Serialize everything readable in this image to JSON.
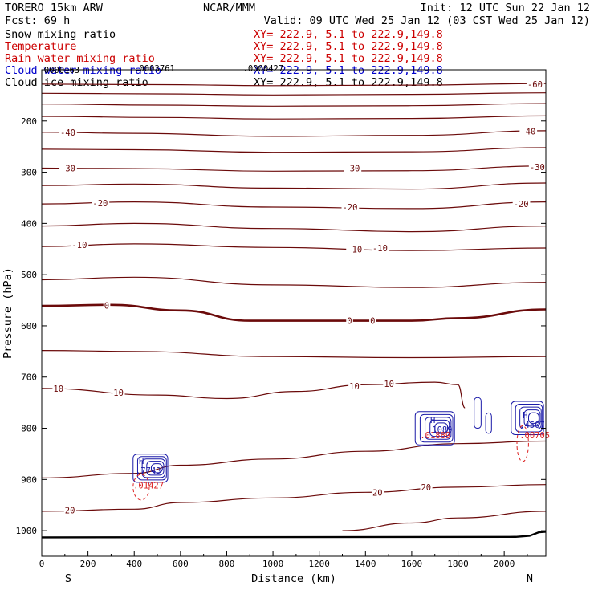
{
  "header": {
    "model": "TORERO  15km ARW",
    "center": "NCAR/MMM",
    "init": "Init: 12 UTC Sun 22 Jan 12",
    "fcst": "Fcst:   69 h",
    "valid": "Valid: 09 UTC Wed 25 Jan 12 (03 CST Wed 25 Jan 12)"
  },
  "legend": [
    {
      "label": "Snow mixing ratio",
      "xy": "XY= 222.9,  5.1 to 222.9,149.8",
      "color": "#000000",
      "xy_color": "#cc0000"
    },
    {
      "label": "Temperature",
      "xy": "XY= 222.9,  5.1 to 222.9,149.8",
      "color": "#cc0000",
      "xy_color": "#cc0000"
    },
    {
      "label": "Rain water mixing ratio",
      "xy": "XY= 222.9,  5.1 to 222.9,149.8",
      "color": "#cc0000",
      "xy_color": "#cc0000"
    },
    {
      "label": "Cloud water mixing ratio",
      "xy": "XY= 222.9,  5.1 to 222.9,149.8",
      "color": "#0000cc",
      "xy_color": "#0000cc"
    },
    {
      "label": "Cloud ice mixing ratio",
      "xy": "XY= 222.9,  5.1 to 222.9,149.8",
      "color": "#000000",
      "xy_color": "#000000"
    }
  ],
  "chart_data": {
    "type": "contour",
    "xlabel": "Distance (km)",
    "ylabel": "Pressure (hPa)",
    "xlim": [
      0,
      2180
    ],
    "ylim": [
      1050,
      100
    ],
    "x_ticks": [
      0,
      200,
      400,
      600,
      800,
      1000,
      1200,
      1400,
      1600,
      1800,
      2000
    ],
    "y_ticks": [
      200,
      300,
      400,
      500,
      600,
      700,
      800,
      900,
      1000
    ],
    "end_labels": {
      "left": "S",
      "right": "N"
    },
    "colors": {
      "temperature": "#6b0a0a",
      "cloud_water": "#1a1aa8",
      "rain": "#dd2222",
      "ground": "#000000"
    },
    "temperature_isotherms": [
      {
        "value": -60,
        "points": [
          [
            0,
            128
          ],
          [
            500,
            129
          ],
          [
            1000,
            131
          ],
          [
            1600,
            130
          ],
          [
            2180,
            127
          ]
        ]
      },
      {
        "value": -55,
        "points": [
          [
            0,
            146
          ],
          [
            500,
            147
          ],
          [
            1000,
            149
          ],
          [
            1600,
            148
          ],
          [
            2180,
            145
          ]
        ]
      },
      {
        "value": -50,
        "points": [
          [
            0,
            167
          ],
          [
            500,
            169
          ],
          [
            1000,
            171
          ],
          [
            1600,
            170
          ],
          [
            2180,
            166
          ]
        ]
      },
      {
        "value": -45,
        "points": [
          [
            0,
            191
          ],
          [
            500,
            193
          ],
          [
            1000,
            196
          ],
          [
            1600,
            195
          ],
          [
            2180,
            190
          ]
        ]
      },
      {
        "value": -40,
        "points": [
          [
            0,
            222
          ],
          [
            400,
            224
          ],
          [
            1000,
            230
          ],
          [
            1600,
            228
          ],
          [
            2180,
            219
          ]
        ]
      },
      {
        "value": -35,
        "points": [
          [
            0,
            255
          ],
          [
            400,
            256
          ],
          [
            1000,
            261
          ],
          [
            1600,
            260
          ],
          [
            2180,
            252
          ]
        ]
      },
      {
        "value": -30,
        "points": [
          [
            0,
            292
          ],
          [
            400,
            293
          ],
          [
            1000,
            298
          ],
          [
            1600,
            297
          ],
          [
            2180,
            288
          ]
        ]
      },
      {
        "value": -25,
        "points": [
          [
            0,
            326
          ],
          [
            400,
            323
          ],
          [
            1000,
            331
          ],
          [
            1600,
            333
          ],
          [
            2180,
            321
          ]
        ]
      },
      {
        "value": -20,
        "points": [
          [
            0,
            362
          ],
          [
            400,
            358
          ],
          [
            1000,
            368
          ],
          [
            1600,
            371
          ],
          [
            2180,
            358
          ]
        ]
      },
      {
        "value": -15,
        "points": [
          [
            0,
            405
          ],
          [
            400,
            400
          ],
          [
            1000,
            410
          ],
          [
            1600,
            416
          ],
          [
            2180,
            405
          ]
        ]
      },
      {
        "value": -10,
        "points": [
          [
            0,
            445
          ],
          [
            400,
            440
          ],
          [
            1000,
            447
          ],
          [
            1600,
            453
          ],
          [
            2180,
            448
          ]
        ]
      },
      {
        "value": -5,
        "points": [
          [
            0,
            510
          ],
          [
            400,
            505
          ],
          [
            1000,
            520
          ],
          [
            1600,
            525
          ],
          [
            2180,
            515
          ]
        ]
      },
      {
        "value": 0,
        "points": [
          [
            0,
            561
          ],
          [
            300,
            559
          ],
          [
            600,
            570
          ],
          [
            900,
            590
          ],
          [
            1200,
            590
          ],
          [
            1600,
            590
          ],
          [
            1800,
            585
          ],
          [
            2180,
            568
          ]
        ]
      },
      {
        "value": 5,
        "points": [
          [
            0,
            648
          ],
          [
            400,
            650
          ],
          [
            1000,
            660
          ],
          [
            1600,
            662
          ],
          [
            2180,
            660
          ]
        ]
      },
      {
        "value": 10,
        "points": [
          [
            0,
            722
          ],
          [
            500,
            735
          ],
          [
            800,
            742
          ],
          [
            1100,
            728
          ],
          [
            1400,
            715
          ],
          [
            1700,
            710
          ],
          [
            1800,
            715
          ],
          [
            1830,
            760
          ]
        ]
      },
      {
        "value": 15,
        "points": [
          [
            0,
            897
          ],
          [
            400,
            888
          ],
          [
            600,
            872
          ],
          [
            1000,
            860
          ],
          [
            1400,
            845
          ],
          [
            1800,
            830
          ],
          [
            2180,
            825
          ]
        ]
      },
      {
        "value": 20,
        "points": [
          [
            0,
            962
          ],
          [
            400,
            958
          ],
          [
            600,
            945
          ],
          [
            1000,
            936
          ],
          [
            1400,
            925
          ],
          [
            1800,
            915
          ],
          [
            2180,
            910
          ]
        ]
      },
      {
        "value": 25,
        "points": [
          [
            1300,
            1000
          ],
          [
            1600,
            985
          ],
          [
            1800,
            975
          ],
          [
            2180,
            962
          ]
        ]
      }
    ],
    "temperature_labels": [
      {
        "text": "-60",
        "x": 2100,
        "p": 128
      },
      {
        "text": "-40",
        "x": 80,
        "p": 222
      },
      {
        "text": "-40",
        "x": 2070,
        "p": 220
      },
      {
        "text": "-30",
        "x": 80,
        "p": 292
      },
      {
        "text": "-30",
        "x": 1310,
        "p": 292
      },
      {
        "text": "-30",
        "x": 2110,
        "p": 290
      },
      {
        "text": "-20",
        "x": 220,
        "p": 360
      },
      {
        "text": "-20",
        "x": 1300,
        "p": 368
      },
      {
        "text": "-20",
        "x": 2040,
        "p": 362
      },
      {
        "text": "-10",
        "x": 130,
        "p": 442
      },
      {
        "text": "-10",
        "x": 1320,
        "p": 450
      },
      {
        "text": "-10",
        "x": 1430,
        "p": 448
      },
      {
        "text": "0",
        "x": 270,
        "p": 560
      },
      {
        "text": "0",
        "x": 1320,
        "p": 590
      },
      {
        "text": "0",
        "x": 1420,
        "p": 590
      },
      {
        "text": "10",
        "x": 50,
        "p": 722
      },
      {
        "text": "10",
        "x": 310,
        "p": 730
      },
      {
        "text": "10",
        "x": 1330,
        "p": 718
      },
      {
        "text": "10",
        "x": 1480,
        "p": 713
      },
      {
        "text": "20",
        "x": 100,
        "p": 960
      },
      {
        "text": "20",
        "x": 1430,
        "p": 925
      },
      {
        "text": "20",
        "x": 1640,
        "p": 915
      }
    ],
    "cloud_water_max": [
      {
        "text": "H",
        "x": 420,
        "p": 870,
        "label": ".7743"
      },
      {
        "text": "H",
        "x": 1680,
        "p": 790,
        "label": ".1089"
      },
      {
        "text": "H",
        "x": 2080,
        "p": 780,
        "label": ".4507"
      }
    ],
    "rain_max": [
      {
        "x": 410,
        "p": 905,
        "label": ".01427"
      },
      {
        "x": 1650,
        "p": 807,
        "label": ".01889"
      },
      {
        "x": 2080,
        "p": 807,
        "label": ".00705"
      }
    ],
    "top_labels": [
      {
        "text": "0000163",
        "x": 10,
        "p": 100
      },
      {
        "text": ".0003761",
        "x": 400,
        "p": 97
      },
      {
        "text": ".0000427",
        "x": 870,
        "p": 97
      }
    ]
  }
}
